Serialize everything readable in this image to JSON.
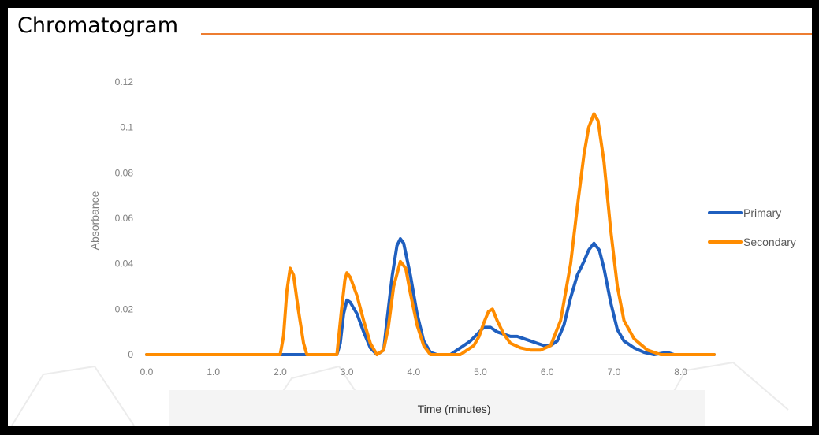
{
  "page_title": "Chromatogram",
  "colors": {
    "background": "#ffffff",
    "frame": "#000000",
    "title_rule": "#ed7d31",
    "primary": "#1f5fbf",
    "secondary": "#ff8c00",
    "tick_text": "#7f7f7f"
  },
  "chart_data": {
    "type": "line",
    "title": "",
    "xlabel": "Time (minutes)",
    "ylabel": "Absorbance",
    "xlim": [
      0,
      8.5
    ],
    "ylim": [
      0,
      0.12
    ],
    "x_ticks": [
      0,
      1,
      2,
      3,
      4,
      5,
      6,
      7,
      8
    ],
    "x_tick_labels": [
      "0.0",
      "1.0",
      "2.0",
      "3.0",
      "4.0",
      "5.0",
      "6.0",
      "7.0",
      "8.0"
    ],
    "y_ticks": [
      0,
      0.02,
      0.04,
      0.06,
      0.08,
      0.1,
      0.12
    ],
    "y_tick_labels": [
      "0",
      "0.02",
      "0.04",
      "0.06",
      "0.08",
      "0.1",
      "0.12"
    ],
    "grid": false,
    "legend_position": "right",
    "series": [
      {
        "name": "Primary",
        "color": "#1f5fbf",
        "points": [
          [
            0.0,
            0.0
          ],
          [
            2.0,
            0.0
          ],
          [
            2.85,
            0.0
          ],
          [
            2.9,
            0.005
          ],
          [
            2.95,
            0.018
          ],
          [
            3.0,
            0.024
          ],
          [
            3.05,
            0.023
          ],
          [
            3.15,
            0.018
          ],
          [
            3.25,
            0.01
          ],
          [
            3.35,
            0.003
          ],
          [
            3.45,
            0.0
          ],
          [
            3.55,
            0.002
          ],
          [
            3.6,
            0.015
          ],
          [
            3.68,
            0.035
          ],
          [
            3.75,
            0.048
          ],
          [
            3.8,
            0.051
          ],
          [
            3.85,
            0.049
          ],
          [
            3.95,
            0.035
          ],
          [
            4.05,
            0.018
          ],
          [
            4.15,
            0.006
          ],
          [
            4.25,
            0.001
          ],
          [
            4.35,
            0.0
          ],
          [
            4.55,
            0.0
          ],
          [
            4.65,
            0.002
          ],
          [
            4.75,
            0.004
          ],
          [
            4.85,
            0.006
          ],
          [
            4.95,
            0.009
          ],
          [
            5.05,
            0.012
          ],
          [
            5.15,
            0.012
          ],
          [
            5.25,
            0.01
          ],
          [
            5.35,
            0.009
          ],
          [
            5.45,
            0.008
          ],
          [
            5.55,
            0.008
          ],
          [
            5.65,
            0.007
          ],
          [
            5.75,
            0.006
          ],
          [
            5.85,
            0.005
          ],
          [
            5.95,
            0.004
          ],
          [
            6.05,
            0.004
          ],
          [
            6.15,
            0.006
          ],
          [
            6.25,
            0.013
          ],
          [
            6.35,
            0.025
          ],
          [
            6.45,
            0.035
          ],
          [
            6.55,
            0.041
          ],
          [
            6.62,
            0.046
          ],
          [
            6.7,
            0.049
          ],
          [
            6.78,
            0.046
          ],
          [
            6.85,
            0.038
          ],
          [
            6.95,
            0.023
          ],
          [
            7.05,
            0.011
          ],
          [
            7.15,
            0.006
          ],
          [
            7.3,
            0.003
          ],
          [
            7.45,
            0.001
          ],
          [
            7.6,
            0.0
          ],
          [
            7.8,
            0.001
          ],
          [
            7.9,
            0.0
          ],
          [
            8.5,
            0.0
          ]
        ]
      },
      {
        "name": "Secondary",
        "color": "#ff8c00",
        "points": [
          [
            0.0,
            0.0
          ],
          [
            2.0,
            0.0
          ],
          [
            2.05,
            0.008
          ],
          [
            2.1,
            0.028
          ],
          [
            2.15,
            0.038
          ],
          [
            2.2,
            0.035
          ],
          [
            2.27,
            0.02
          ],
          [
            2.35,
            0.005
          ],
          [
            2.4,
            0.0
          ],
          [
            2.85,
            0.0
          ],
          [
            2.92,
            0.02
          ],
          [
            2.97,
            0.033
          ],
          [
            3.0,
            0.036
          ],
          [
            3.05,
            0.034
          ],
          [
            3.15,
            0.026
          ],
          [
            3.25,
            0.015
          ],
          [
            3.35,
            0.005
          ],
          [
            3.45,
            0.0
          ],
          [
            3.55,
            0.002
          ],
          [
            3.62,
            0.012
          ],
          [
            3.7,
            0.03
          ],
          [
            3.8,
            0.041
          ],
          [
            3.88,
            0.038
          ],
          [
            3.95,
            0.027
          ],
          [
            4.05,
            0.013
          ],
          [
            4.15,
            0.004
          ],
          [
            4.25,
            0.0
          ],
          [
            4.7,
            0.0
          ],
          [
            4.8,
            0.002
          ],
          [
            4.9,
            0.004
          ],
          [
            4.98,
            0.008
          ],
          [
            5.05,
            0.014
          ],
          [
            5.12,
            0.019
          ],
          [
            5.18,
            0.02
          ],
          [
            5.25,
            0.015
          ],
          [
            5.35,
            0.009
          ],
          [
            5.45,
            0.005
          ],
          [
            5.6,
            0.003
          ],
          [
            5.75,
            0.002
          ],
          [
            5.9,
            0.002
          ],
          [
            6.05,
            0.004
          ],
          [
            6.2,
            0.015
          ],
          [
            6.35,
            0.04
          ],
          [
            6.45,
            0.065
          ],
          [
            6.55,
            0.088
          ],
          [
            6.62,
            0.1
          ],
          [
            6.7,
            0.106
          ],
          [
            6.76,
            0.103
          ],
          [
            6.85,
            0.085
          ],
          [
            6.95,
            0.055
          ],
          [
            7.05,
            0.03
          ],
          [
            7.15,
            0.015
          ],
          [
            7.3,
            0.007
          ],
          [
            7.5,
            0.002
          ],
          [
            7.7,
            0.0
          ],
          [
            8.5,
            0.0
          ]
        ]
      }
    ]
  }
}
